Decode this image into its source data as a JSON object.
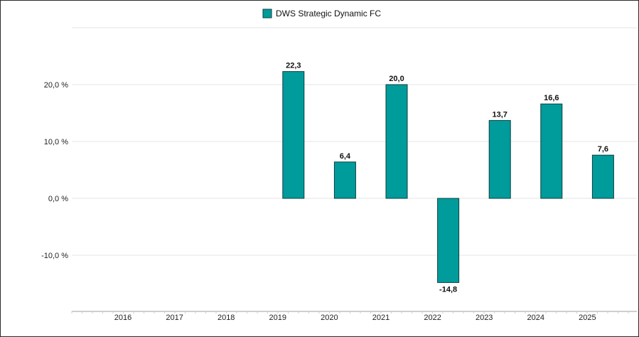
{
  "chart_data": {
    "type": "bar",
    "categories": [
      "2016",
      "2017",
      "2018",
      "2019",
      "2020",
      "2021",
      "2022",
      "2023",
      "2024",
      "2025"
    ],
    "series": [
      {
        "name": "DWS Strategic Dynamic FC",
        "color": "#009b9b",
        "values": [
          null,
          null,
          null,
          22.3,
          6.4,
          20.0,
          -14.8,
          13.7,
          16.6,
          7.6
        ],
        "labels": [
          "",
          "",
          "",
          "22,3",
          "6,4",
          "20,0",
          "-14,8",
          "13,7",
          "16,6",
          "7,6"
        ]
      }
    ],
    "yticks": [
      20,
      10,
      0,
      -10
    ],
    "ytick_labels": [
      "20,0 %",
      "10,0 %",
      "0,0 %",
      "-10,0 %"
    ],
    "ylim": [
      -19.5,
      30
    ],
    "grid": true,
    "legend_position": "top-center",
    "xlabel": "",
    "ylabel": ""
  }
}
